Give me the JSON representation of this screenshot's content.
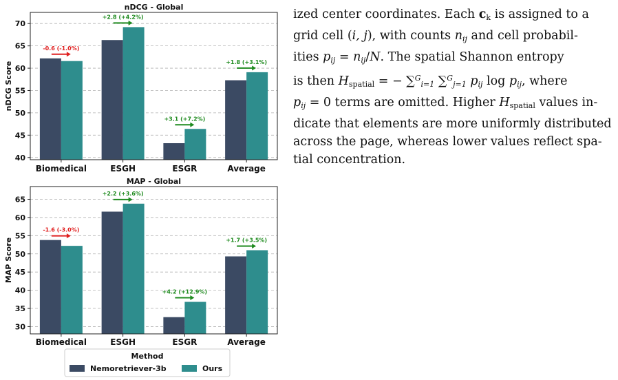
{
  "chart_data": [
    {
      "type": "bar",
      "title": "nDCG - Global",
      "ylabel": "nDCG Score",
      "categories": [
        "Biomedical",
        "ESGH",
        "ESGR",
        "Average"
      ],
      "ylim": [
        39.5,
        72.5
      ],
      "yticks": [
        40,
        45,
        50,
        55,
        60,
        65,
        70
      ],
      "grid": true,
      "series": [
        {
          "name": "Nemoretriever-3b",
          "values": [
            62.2,
            66.3,
            43.2,
            57.3
          ]
        },
        {
          "name": "Ours",
          "values": [
            61.6,
            69.2,
            46.4,
            59.1
          ]
        }
      ],
      "annotations": [
        "-0.6 (-1.0%)",
        "+2.8 (+4.2%)",
        "+3.1 (+7.2%)",
        "+1.8 (+3.1%)"
      ]
    },
    {
      "type": "bar",
      "title": "MAP - Global",
      "ylabel": "MAP Score",
      "categories": [
        "Biomedical",
        "ESGH",
        "ESGR",
        "Average"
      ],
      "ylim": [
        28,
        68.5
      ],
      "yticks": [
        30,
        35,
        40,
        45,
        50,
        55,
        60,
        65
      ],
      "grid": true,
      "series": [
        {
          "name": "Nemoretriever-3b",
          "values": [
            53.8,
            61.6,
            32.6,
            49.3
          ]
        },
        {
          "name": "Ours",
          "values": [
            52.2,
            63.8,
            36.8,
            51.0
          ]
        }
      ],
      "annotations": [
        "-1.6 (-3.0%)",
        "+2.2 (+3.6%)",
        "+4.2 (+12.9%)",
        "+1.7 (+3.5%)"
      ]
    }
  ],
  "legend": {
    "title": "Method",
    "placement": "bottom-center",
    "items": [
      "Nemoretriever-3b",
      "Ours"
    ]
  },
  "colors": {
    "series": [
      "#3b4a63",
      "#2e8d8d"
    ],
    "positive": "#1e8a1e",
    "negative": "#e02020",
    "grid": "#b0b0b0",
    "text": "#111111"
  },
  "paragraph": {
    "line1": [
      "ized center coordinates. Each ",
      "c",
      "k",
      " is assigned to a"
    ],
    "line2": [
      "grid cell (",
      "i, j",
      "), with counts ",
      "n",
      "ij",
      " and cell probabil-"
    ],
    "line3": [
      "ities ",
      "p",
      "ij",
      " = ",
      "n",
      "ij",
      "/",
      "N",
      ". The spatial Shannon entropy"
    ],
    "line4": [
      "is then ",
      "H",
      "spatial",
      " = − ∑",
      "G",
      "i=1",
      " ∑",
      "G",
      "j=1",
      " ",
      "p",
      "ij",
      " log ",
      "p",
      "ij",
      ", where"
    ],
    "line5": [
      "p",
      "ij",
      " = 0 terms are omitted. Higher ",
      "H",
      "spatial",
      " values in-"
    ],
    "line6": "dicate that elements are more uniformly distributed",
    "line7": "across the page, whereas lower values reflect spa-",
    "line8": "tial concentration."
  }
}
